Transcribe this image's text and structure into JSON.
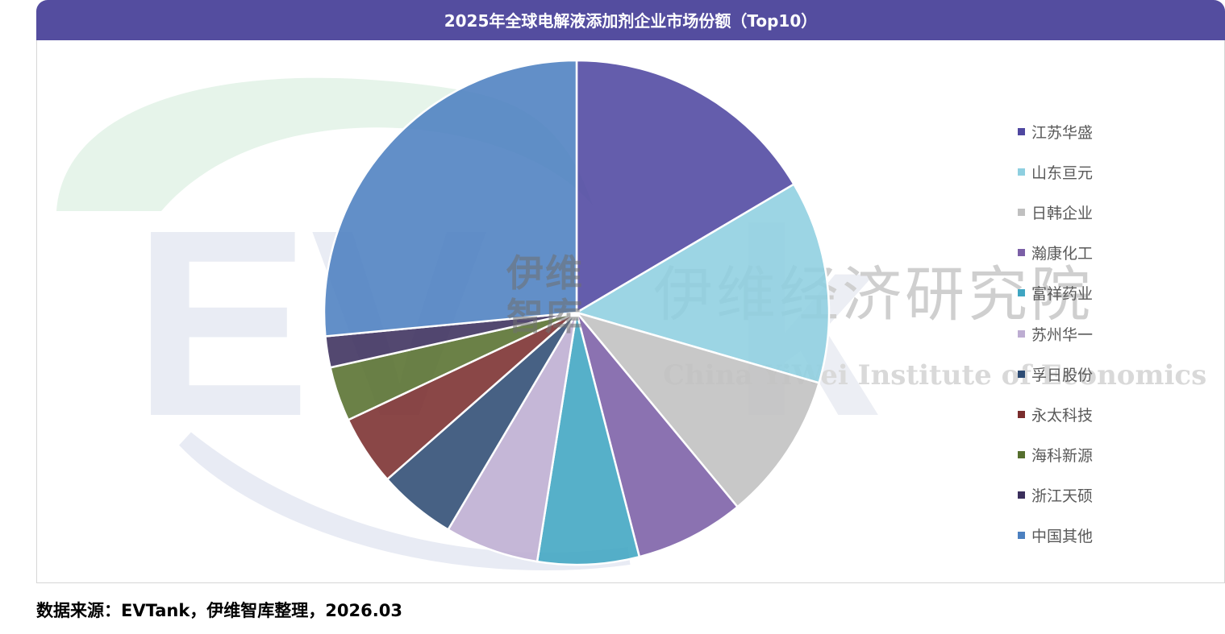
{
  "header": {
    "title": "2025年全球电解液添加剂企业市场份额（Top10）"
  },
  "watermark": {
    "cn": "伊维经济研究院",
    "en": "China YiWei Institute of Economics",
    "logo_top": "伊维",
    "logo_bottom": "智库"
  },
  "source": "数据来源：EVTank，伊维智库整理，2026.03",
  "chart_data": {
    "type": "pie",
    "title": "2025年全球电解液添加剂企业市场份额（Top10）",
    "legend_position": "right",
    "series": [
      {
        "name": "江苏华盛",
        "value": 16.5,
        "color": "#4f47a0"
      },
      {
        "name": "山东亘元",
        "value": 13.0,
        "color": "#8ecfe0"
      },
      {
        "name": "日韩企业",
        "value": 9.5,
        "color": "#c0c0c0"
      },
      {
        "name": "瀚康化工",
        "value": 7.0,
        "color": "#7b5fa6"
      },
      {
        "name": "富祥药业",
        "value": 6.5,
        "color": "#3fa5c2"
      },
      {
        "name": "苏州华一",
        "value": 6.0,
        "color": "#bdadd2"
      },
      {
        "name": "孚日股份",
        "value": 5.0,
        "color": "#2d4b73"
      },
      {
        "name": "永太科技",
        "value": 4.5,
        "color": "#7a2d2d"
      },
      {
        "name": "海科新源",
        "value": 3.5,
        "color": "#566f2e"
      },
      {
        "name": "浙江天硕",
        "value": 2.0,
        "color": "#3b2f5c"
      },
      {
        "name": "中国其他",
        "value": 26.5,
        "color": "#4c80c0"
      }
    ]
  }
}
